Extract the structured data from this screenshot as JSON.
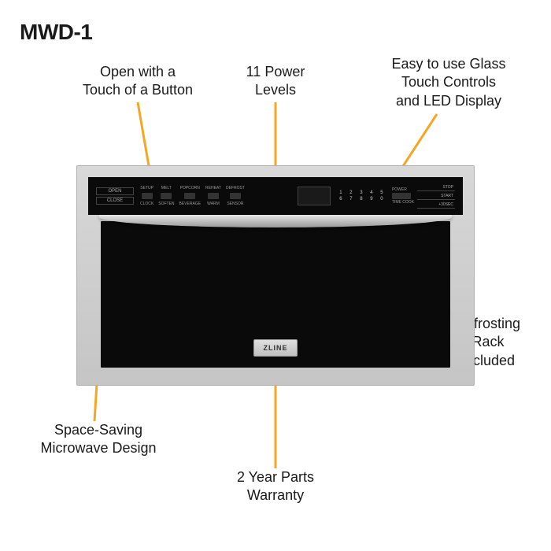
{
  "title": "MWD-1",
  "brand": "ZLINE",
  "accent_color": "#f5a623",
  "callouts": {
    "open_touch": "Open with a\nTouch of a Button",
    "power_levels": "11 Power\nLevels",
    "glass_controls": "Easy to use Glass\nTouch Controls\nand LED Display",
    "defrosting": "Defrosting\nRack\nIncluded",
    "space_saving": "Space-Saving\nMicrowave Design",
    "warranty": "2 Year Parts\nWarranty"
  },
  "panel": {
    "left": [
      "OPEN",
      "CLOSE"
    ],
    "mid_top": [
      "SETUP",
      "MELT",
      "POPCORN",
      "REHEAT",
      "DEFROST"
    ],
    "mid_bot": [
      "CLOCK",
      "SOFTEN",
      "BEVERAGE",
      "WARM",
      "SENSOR"
    ],
    "nums_top": [
      "1",
      "2",
      "3",
      "4",
      "5"
    ],
    "nums_bot": [
      "6",
      "7",
      "8",
      "9",
      "0"
    ],
    "nums_labels": [
      "POWER",
      "TIME COOK"
    ],
    "right": [
      "STOP",
      "START",
      "+30SEC"
    ]
  }
}
